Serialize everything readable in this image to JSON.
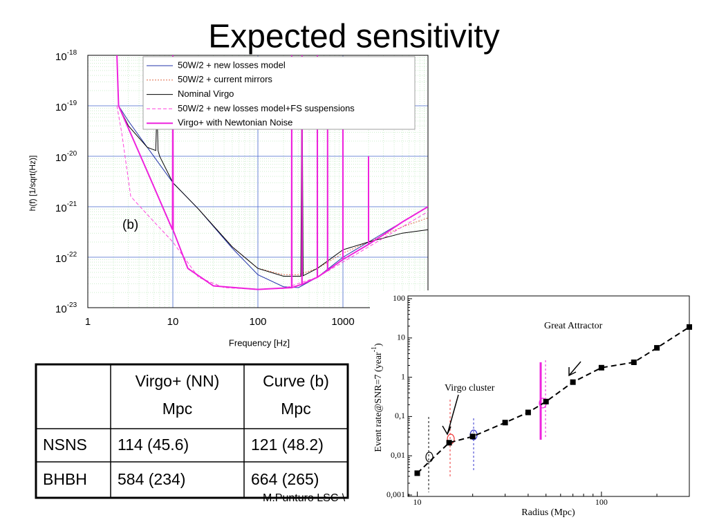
{
  "title": "Expected sensitivity",
  "chart_data": [
    {
      "type": "line",
      "log_x": true,
      "log_y": true,
      "x_label": "Frequency [Hz]",
      "y_label": "h(f) [1/sqrt(Hz)]",
      "annotation": "(b)",
      "xlim": [
        1,
        10000
      ],
      "xticks": [
        1,
        10,
        100,
        1000
      ],
      "ylim": [
        1e-23,
        1e-18
      ],
      "yticks": [
        {
          "value": 1e-23,
          "label": "10",
          "exponent": "-23"
        },
        {
          "value": 1e-22,
          "label": "10",
          "exponent": "-22"
        },
        {
          "value": 1e-21,
          "label": "10",
          "exponent": "-21"
        },
        {
          "value": 1e-20,
          "label": "10",
          "exponent": "-20"
        },
        {
          "value": 1e-19,
          "label": "10",
          "exponent": "-19"
        },
        {
          "value": 1e-18,
          "label": "10",
          "exponent": "-18"
        }
      ],
      "grid": true,
      "minor_grid": true,
      "legend": "top",
      "series": [
        {
          "name": "50W/2 + new losses model",
          "color": "#2233aa",
          "style": "solid",
          "width": 1,
          "x": [
            2.2,
            2.3,
            3,
            5,
            10,
            20,
            50,
            100,
            200,
            300,
            500,
            1000,
            2000,
            5000,
            10000
          ],
          "values": [
            1e-18,
            1e-19,
            5e-20,
            1.5e-20,
            3e-21,
            9e-22,
            1.5e-22,
            4.5e-23,
            2.6e-23,
            2.5e-23,
            4e-23,
            1e-22,
            2e-22,
            5e-22,
            1e-21
          ]
        },
        {
          "name": "50W/2 + current mirrors",
          "color": "#dd6644",
          "style": "dotted",
          "width": 1,
          "x": [
            20,
            50,
            100,
            200,
            300,
            500,
            1000,
            2000,
            5000,
            10000
          ],
          "values": [
            9e-22,
            1.6e-22,
            6e-23,
            4.5e-23,
            4.5e-23,
            6e-23,
            1.2e-22,
            2e-22,
            4e-22,
            6e-22
          ]
        },
        {
          "name": "Nominal Virgo",
          "color": "#000000",
          "style": "solid",
          "width": 1,
          "x": [
            2.2,
            2.3,
            3,
            5,
            6.3,
            6.5,
            6.7,
            7,
            10,
            20,
            50,
            100,
            200,
            320,
            330,
            340,
            500,
            1000,
            2000,
            5000,
            10000
          ],
          "values": [
            1e-18,
            1e-19,
            4e-20,
            1.5e-20,
            1.3e-20,
            1e-19,
            1.3e-20,
            1e-20,
            3e-21,
            9e-22,
            1.6e-22,
            6e-23,
            4.2e-23,
            4.2e-23,
            1e-18,
            4.3e-23,
            6e-23,
            1.4e-22,
            2e-22,
            3e-22,
            3.5e-22
          ]
        },
        {
          "name": "50W/2 + new losses model+FS suspensions",
          "color": "#ff44dd",
          "style": "dashed",
          "width": 1,
          "x": [
            2.2,
            2.5,
            3.2,
            5,
            10,
            20,
            40,
            100,
            200,
            500,
            1000,
            2000,
            5000,
            10000
          ],
          "values": [
            1e-19,
            3e-20,
            1.6e-21,
            7e-22,
            2e-22,
            4e-23,
            2.5e-23,
            2.3e-23,
            2.4e-23,
            4e-23,
            8e-23,
            1.6e-22,
            4e-22,
            8e-22
          ]
        },
        {
          "name": "Virgo+ with Newtonian Noise",
          "color": "#ee22dd",
          "style": "solid",
          "width": 2,
          "x": [
            2.2,
            2.3,
            5,
            9.9,
            10,
            10.1,
            15,
            30,
            100,
            249,
            250,
            251,
            329,
            330,
            331,
            499,
            500,
            501,
            659,
            660,
            661,
            999,
            1000,
            1001,
            1999,
            2000,
            2001,
            3000,
            5000,
            10000
          ],
          "values": [
            1e-18,
            1e-19,
            5e-21,
            3.5e-22,
            1e-18,
            3.4e-22,
            6e-23,
            2.7e-23,
            2.3e-23,
            2.5e-23,
            1e-18,
            2.5e-23,
            2.9e-23,
            1e-18,
            2.9e-23,
            4e-23,
            1e-18,
            4e-23,
            5.5e-23,
            1e-19,
            5.5e-23,
            9e-23,
            1e-19,
            9e-23,
            1.8e-22,
            1e-20,
            1.8e-22,
            2.8e-22,
            5e-22,
            1e-21
          ]
        }
      ]
    },
    {
      "type": "scatter",
      "log_x": true,
      "log_y": true,
      "x_label": "Radius (Mpc)",
      "y_label": {
        "text": "Event rate@SNR=7 (year",
        "exponent": "-1",
        "close": ")"
      },
      "annotations": [
        "Virgo cluster",
        "Great Attractor"
      ],
      "xlim": [
        8.9,
        300
      ],
      "xticks": [
        10,
        100
      ],
      "ylim": [
        0.001,
        100
      ],
      "yticks": [
        {
          "value": 0.001,
          "label": "0,001"
        },
        {
          "value": 0.01,
          "label": "0,01"
        },
        {
          "value": 0.1,
          "label": "0,1"
        },
        1,
        10,
        100
      ],
      "color": "#000000",
      "x": [
        10,
        14.9,
        20,
        30,
        40,
        50,
        70,
        100,
        150,
        200,
        300
      ],
      "values": [
        0.0036,
        0.0215,
        0.031,
        0.07,
        0.127,
        0.24,
        0.75,
        1.75,
        2.4,
        5.6,
        19
      ]
    }
  ],
  "table": {
    "columns": [
      {
        "name": "Virgo+ (NN)",
        "unit": "Mpc"
      },
      {
        "name": "Curve (b)",
        "unit": "Mpc"
      }
    ],
    "rows": [
      [
        "NSNS",
        "114 (45.6)",
        "121 (48.2)"
      ],
      [
        "BHBH",
        "584 (234)",
        "664 (265)"
      ]
    ]
  },
  "footer": "M.Punturo LSC-\\"
}
